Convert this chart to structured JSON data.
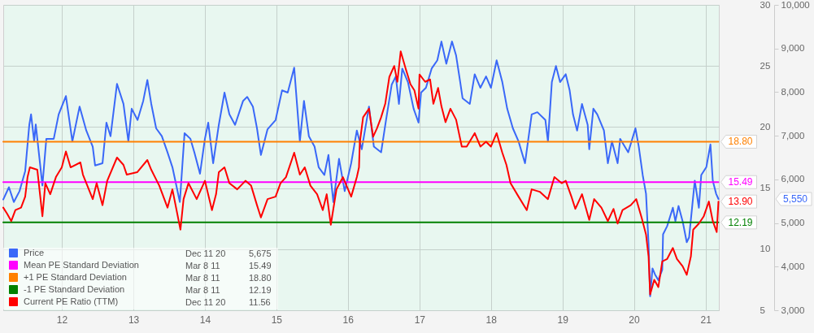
{
  "chart_data": {
    "type": "line",
    "xlim": [
      "2011-03-08",
      "2021-03-10"
    ],
    "xticks": [
      {
        "value": "2012",
        "label": "12"
      },
      {
        "value": "2013",
        "label": "13"
      },
      {
        "value": "2014",
        "label": "14"
      },
      {
        "value": "2015",
        "label": "15"
      },
      {
        "value": "2016",
        "label": "16"
      },
      {
        "value": "2017",
        "label": "17"
      },
      {
        "value": "2018",
        "label": "18"
      },
      {
        "value": "2019",
        "label": "19"
      },
      {
        "value": "2020",
        "label": "20"
      },
      {
        "value": "2021",
        "label": "21"
      }
    ],
    "ylim": [
      5,
      30
    ],
    "yticks": [
      5,
      10,
      15,
      20,
      25,
      30
    ],
    "y2lim": [
      3000,
      10000
    ],
    "y2ticks": [
      {
        "value": 3000,
        "label": "3,000"
      },
      {
        "value": 4000,
        "label": "4,000"
      },
      {
        "value": 5000,
        "label": "5,000"
      },
      {
        "value": 6000,
        "label": "6,000"
      },
      {
        "value": 7000,
        "label": "7,000"
      },
      {
        "value": 8000,
        "label": "8,000"
      },
      {
        "value": 9000,
        "label": "9,000"
      },
      {
        "value": 10000,
        "label": "10,000"
      }
    ],
    "grid": true,
    "legend": "bottom left",
    "annotations": [
      "Dec 11 20",
      "5,675",
      "Mar 8 11",
      "15.49",
      "Mar 8 11",
      "18.80",
      "Mar 8 11",
      "12.19",
      "Dec 11 20",
      "11.56",
      "5,550"
    ],
    "series": [
      {
        "name": "Price",
        "color": "#3a68f8",
        "axis": "y2",
        "x": [
          "2011-03-08",
          "2011-04-06",
          "2011-05-01",
          "2011-05-30",
          "2011-06-28",
          "2011-07-19",
          "2011-07-28",
          "2011-08-13",
          "2011-08-21",
          "2011-09-24",
          "2011-10-14",
          "2011-11-21",
          "2011-12-16",
          "2012-01-22",
          "2012-02-24",
          "2012-04-01",
          "2012-05-05",
          "2012-06-07",
          "2012-06-19",
          "2012-07-27",
          "2012-08-16",
          "2012-09-06",
          "2012-09-18",
          "2012-10-09",
          "2012-11-11",
          "2012-12-06",
          "2012-12-23",
          "2013-01-22",
          "2013-02-20",
          "2013-03-13",
          "2013-04-02",
          "2013-04-27",
          "2013-05-26",
          "2013-06-24",
          "2013-07-19",
          "2013-08-26",
          "2013-09-19",
          "2013-10-19",
          "2013-11-08",
          "2013-12-07",
          "2014-01-01",
          "2014-01-18",
          "2014-02-12",
          "2014-03-13",
          "2014-04-11",
          "2014-05-06",
          "2014-06-04",
          "2014-07-15",
          "2014-08-05",
          "2014-09-03",
          "2014-09-24",
          "2014-10-14",
          "2014-11-17",
          "2014-12-28",
          "2015-01-30",
          "2015-02-28",
          "2015-04-02",
          "2015-05-01",
          "2015-05-22",
          "2015-06-16",
          "2015-07-15",
          "2015-08-05",
          "2015-09-03",
          "2015-09-24",
          "2015-10-19",
          "2015-11-17",
          "2015-12-16",
          "2016-01-18",
          "2016-02-16",
          "2016-03-12",
          "2016-04-18",
          "2016-05-13",
          "2016-06-19",
          "2016-07-14",
          "2016-08-12",
          "2016-09-02",
          "2016-09-18",
          "2016-10-05",
          "2016-11-03",
          "2016-12-02",
          "2016-12-27",
          "2017-01-09",
          "2017-02-03",
          "2017-03-04",
          "2017-04-02",
          "2017-04-23",
          "2017-05-18",
          "2017-06-16",
          "2017-07-07",
          "2017-07-28",
          "2017-08-09",
          "2017-09-15",
          "2017-10-10",
          "2017-11-08",
          "2017-12-07",
          "2018-01-01",
          "2018-01-30",
          "2018-02-28",
          "2018-03-25",
          "2018-04-23",
          "2018-05-22",
          "2018-06-24",
          "2018-07-28",
          "2018-08-26",
          "2018-10-06",
          "2018-10-19",
          "2018-11-08",
          "2018-11-29",
          "2018-12-20",
          "2019-01-18",
          "2019-02-07",
          "2019-02-24",
          "2019-03-17",
          "2019-04-11",
          "2019-05-10",
          "2019-05-18",
          "2019-06-08",
          "2019-06-28",
          "2019-08-01",
          "2019-08-21",
          "2019-09-11",
          "2019-10-10",
          "2019-10-23",
          "2019-12-03",
          "2019-12-24",
          "2020-01-09",
          "2020-01-26",
          "2020-02-15",
          "2020-03-03",
          "2020-03-16",
          "2020-03-24",
          "2020-04-05",
          "2020-04-18",
          "2020-05-05",
          "2020-05-25",
          "2020-05-29",
          "2020-06-19",
          "2020-07-18",
          "2020-07-31",
          "2020-08-16",
          "2020-09-06",
          "2020-09-27",
          "2020-10-09",
          "2020-11-07",
          "2020-11-28",
          "2020-12-10",
          "2021-01-05",
          "2021-01-26",
          "2021-02-07",
          "2021-02-24",
          "2021-03-08"
        ],
        "values": [
          5540,
          5820,
          5480,
          5730,
          6190,
          7250,
          7490,
          6870,
          7260,
          5860,
          6930,
          6930,
          7490,
          7910,
          6870,
          7670,
          7120,
          6750,
          6320,
          6370,
          7300,
          6990,
          7430,
          8190,
          7730,
          6870,
          7620,
          7360,
          7800,
          8280,
          7730,
          7170,
          6990,
          6620,
          6280,
          5480,
          7060,
          6930,
          6620,
          6130,
          6930,
          7300,
          6370,
          7250,
          7990,
          7490,
          7250,
          7800,
          7890,
          7670,
          7170,
          6560,
          7150,
          7360,
          8040,
          7990,
          8560,
          6870,
          7800,
          6990,
          6750,
          6280,
          6100,
          6560,
          5480,
          6470,
          5730,
          6370,
          7120,
          6690,
          7670,
          6750,
          6620,
          7360,
          8170,
          8360,
          7730,
          8540,
          8230,
          7620,
          7300,
          7990,
          8100,
          8540,
          8730,
          9160,
          8650,
          9160,
          8840,
          8230,
          7860,
          7730,
          8410,
          8100,
          8360,
          8100,
          8730,
          8230,
          7620,
          7170,
          6870,
          6370,
          7490,
          7540,
          7360,
          6870,
          8230,
          8600,
          8230,
          8410,
          8040,
          7490,
          7120,
          7730,
          7250,
          6690,
          7620,
          7490,
          7120,
          6370,
          6870,
          6370,
          6930,
          6620,
          6930,
          7170,
          6750,
          6100,
          5670,
          4520,
          3320,
          3960,
          3820,
          3690,
          3930,
          4740,
          4930,
          5350,
          5040,
          5390,
          5040,
          4560,
          4670,
          5970,
          5350,
          6100,
          6280,
          6800,
          5970,
          5670,
          5550
        ]
      },
      {
        "name": "Mean PE Standard Deviation",
        "color": "#ff00ff",
        "x": [
          "2011-03-08",
          "2021-03-08"
        ],
        "values": [
          15.49,
          15.49
        ],
        "value_labels": [
          null,
          "15.49"
        ]
      },
      {
        "name": "+1 PE Standard Deviation",
        "color": "#ff8000",
        "x": [
          "2011-03-08",
          "2021-03-08"
        ],
        "values": [
          18.8,
          18.8
        ],
        "value_labels": [
          null,
          "18.80"
        ]
      },
      {
        "name": "-1 PE Standard Deviation",
        "color": "#008000",
        "x": [
          "2011-03-08",
          "2021-03-08"
        ],
        "values": [
          12.19,
          12.19
        ],
        "value_labels": [
          null,
          "12.19"
        ]
      },
      {
        "name": "Current PE Ratio (TTM)",
        "color": "#ff0000",
        "x": [
          "2011-03-08",
          "2011-03-28",
          "2011-04-18",
          "2011-05-09",
          "2011-06-07",
          "2011-06-28",
          "2011-07-10",
          "2011-07-22",
          "2011-08-29",
          "2011-09-24",
          "2011-10-09",
          "2011-11-03",
          "2011-12-02",
          "2012-01-01",
          "2012-01-22",
          "2012-02-15",
          "2012-04-05",
          "2012-04-18",
          "2012-06-07",
          "2012-06-27",
          "2012-07-27",
          "2012-08-20",
          "2012-10-09",
          "2012-11-11",
          "2012-11-28",
          "2013-01-20",
          "2013-03-13",
          "2013-04-02",
          "2013-05-13",
          "2013-06-24",
          "2013-07-19",
          "2013-08-29",
          "2013-09-14",
          "2013-10-09",
          "2013-11-20",
          "2014-01-01",
          "2014-02-06",
          "2014-02-27",
          "2014-03-13",
          "2014-04-11",
          "2014-05-06",
          "2014-06-15",
          "2014-07-27",
          "2014-08-25",
          "2014-09-24",
          "2014-10-14",
          "2014-11-17",
          "2014-12-28",
          "2015-01-22",
          "2015-02-19",
          "2015-04-02",
          "2015-05-01",
          "2015-05-26",
          "2015-06-24",
          "2015-07-28",
          "2015-08-26",
          "2015-09-15",
          "2015-10-06",
          "2015-11-04",
          "2015-12-07",
          "2016-01-18",
          "2016-02-16",
          "2016-02-27",
          "2016-03-02",
          "2016-03-19",
          "2016-04-18",
          "2016-05-09",
          "2016-05-29",
          "2016-06-19",
          "2016-07-10",
          "2016-07-31",
          "2016-08-25",
          "2016-09-10",
          "2016-09-27",
          "2016-10-22",
          "2016-11-16",
          "2016-12-06",
          "2016-12-27",
          "2017-01-01",
          "2017-01-30",
          "2017-02-24",
          "2017-03-13",
          "2017-04-06",
          "2017-04-23",
          "2017-05-14",
          "2017-06-08",
          "2017-07-07",
          "2017-08-05",
          "2017-08-30",
          "2017-10-10",
          "2017-11-08",
          "2017-12-07",
          "2018-01-01",
          "2018-01-30",
          "2018-02-28",
          "2018-03-21",
          "2018-04-11",
          "2018-05-22",
          "2018-07-03",
          "2018-07-28",
          "2018-09-07",
          "2018-10-19",
          "2018-11-21",
          "2018-12-28",
          "2019-01-18",
          "2019-02-16",
          "2019-03-08",
          "2019-04-11",
          "2019-05-18",
          "2019-06-12",
          "2019-07-19",
          "2019-08-21",
          "2019-09-19",
          "2019-10-10",
          "2019-11-04",
          "2019-12-16",
          "2020-01-13",
          "2020-02-11",
          "2020-03-03",
          "2020-03-16",
          "2020-03-24",
          "2020-04-14",
          "2020-05-05",
          "2020-05-25",
          "2020-06-19",
          "2020-07-18",
          "2020-08-08",
          "2020-09-06",
          "2020-09-27",
          "2020-10-18",
          "2020-10-30",
          "2020-11-28",
          "2020-12-23",
          "2021-01-18",
          "2021-02-07",
          "2021-02-27",
          "2021-03-08"
        ],
        "values": [
          13.4,
          12.9,
          12.3,
          13.2,
          13.4,
          14.3,
          15.9,
          16.7,
          16.5,
          12.7,
          15.4,
          14.5,
          15.9,
          16.7,
          18.0,
          16.7,
          17.1,
          16.1,
          14.1,
          15.4,
          13.6,
          15.6,
          17.5,
          16.9,
          16.1,
          16.3,
          17.3,
          16.5,
          15.2,
          13.4,
          14.9,
          11.6,
          14.1,
          15.4,
          14.1,
          15.6,
          13.2,
          14.5,
          16.3,
          16.7,
          15.4,
          14.9,
          15.6,
          15.2,
          13.6,
          12.6,
          14.1,
          14.3,
          15.4,
          15.9,
          17.9,
          16.1,
          16.7,
          15.2,
          14.5,
          13.2,
          14.5,
          12.0,
          14.9,
          15.9,
          14.3,
          15.9,
          16.7,
          18.7,
          20.8,
          21.5,
          19.2,
          19.9,
          20.8,
          21.9,
          24.1,
          25.0,
          23.7,
          26.2,
          24.8,
          23.5,
          23.0,
          21.5,
          24.3,
          23.7,
          23.9,
          21.9,
          23.2,
          21.7,
          20.4,
          21.5,
          20.6,
          18.4,
          18.4,
          19.5,
          18.4,
          18.8,
          18.4,
          19.5,
          17.9,
          16.9,
          15.4,
          14.3,
          13.2,
          14.9,
          14.7,
          14.1,
          15.9,
          15.4,
          15.6,
          14.3,
          13.3,
          14.5,
          12.4,
          14.1,
          13.4,
          12.3,
          13.3,
          12.1,
          13.2,
          13.6,
          14.1,
          12.5,
          11.2,
          9.4,
          6.3,
          7.5,
          6.9,
          9.0,
          9.2,
          10.1,
          9.2,
          8.6,
          7.9,
          9.4,
          11.6,
          12.1,
          12.7,
          13.9,
          12.3,
          11.4,
          13.9
        ],
        "value_labels": [
          null,
          null,
          null,
          null,
          null,
          null,
          null,
          null,
          null,
          null,
          null,
          null,
          null,
          null,
          null,
          null,
          null,
          null,
          null,
          null,
          null,
          null,
          null,
          null,
          null,
          null,
          null,
          null,
          null,
          null,
          null,
          null,
          null,
          null,
          null,
          null,
          null,
          null,
          null,
          null,
          null,
          null,
          null,
          null,
          null,
          null,
          null,
          null,
          null,
          null,
          null,
          null,
          null,
          null,
          null,
          null,
          null,
          null,
          null,
          null,
          null,
          null,
          null,
          null,
          null,
          null,
          null,
          null,
          null,
          null,
          null,
          null,
          null,
          null,
          null,
          null,
          null,
          null,
          null,
          null,
          null,
          null,
          null,
          null,
          null,
          null,
          null,
          null,
          null,
          null,
          null,
          null,
          null,
          null,
          null,
          null,
          null,
          null,
          null,
          null,
          null,
          null,
          null,
          null,
          null,
          null,
          null,
          null,
          null,
          null,
          null,
          null,
          null,
          null,
          null,
          null,
          null,
          null,
          null,
          null,
          null,
          null,
          null,
          null,
          null,
          null,
          null,
          null,
          null,
          null,
          null,
          null,
          null,
          null,
          null,
          null,
          "13.90"
        ]
      }
    ]
  }
}
